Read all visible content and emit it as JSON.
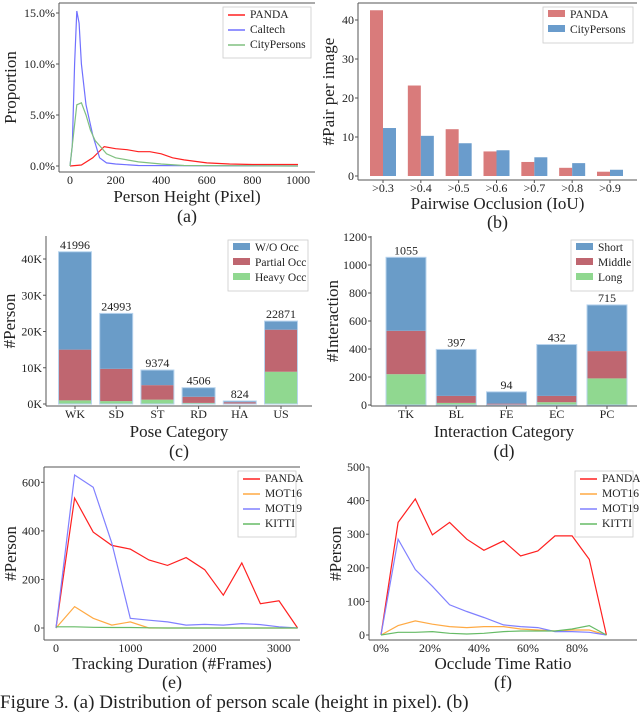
{
  "caption": "Figure 3. (a) Distribution of person scale (height in pixel). (b)",
  "chart_data": [
    {
      "id": "a",
      "panel_label": "(a)",
      "type": "line",
      "xlabel": "Person Height (Pixel)",
      "ylabel": "Proportion",
      "xlim": [
        0,
        1000
      ],
      "ylim": [
        0,
        15.5
      ],
      "xticks": [
        0,
        200,
        400,
        600,
        800,
        1000
      ],
      "yticks": [
        0,
        5,
        10,
        15
      ],
      "ytick_labels": [
        "0.0%",
        "5.0%",
        "10.0%",
        "15.0%"
      ],
      "legend": "top-right",
      "grid": false,
      "series": [
        {
          "name": "PANDA",
          "color": "#ff2020",
          "points": [
            [
              0,
              0
            ],
            [
              50,
              0.1
            ],
            [
              100,
              0.8
            ],
            [
              150,
              1.9
            ],
            [
              200,
              1.7
            ],
            [
              250,
              1.6
            ],
            [
              300,
              1.4
            ],
            [
              350,
              1.4
            ],
            [
              400,
              1.2
            ],
            [
              450,
              0.8
            ],
            [
              500,
              0.6
            ],
            [
              600,
              0.3
            ],
            [
              700,
              0.2
            ],
            [
              800,
              0.15
            ],
            [
              1000,
              0.15
            ]
          ]
        },
        {
          "name": "Caltech",
          "color": "#7070ff",
          "points": [
            [
              0,
              0
            ],
            [
              10,
              2
            ],
            [
              20,
              10
            ],
            [
              30,
              15.2
            ],
            [
              40,
              14
            ],
            [
              50,
              10
            ],
            [
              70,
              6
            ],
            [
              100,
              3
            ],
            [
              130,
              0.8
            ],
            [
              160,
              0.3
            ],
            [
              200,
              0.2
            ],
            [
              300,
              0.05
            ],
            [
              1000,
              0
            ]
          ]
        },
        {
          "name": "CityPersons",
          "color": "#80c080",
          "points": [
            [
              0,
              0
            ],
            [
              15,
              3
            ],
            [
              30,
              6
            ],
            [
              50,
              6.2
            ],
            [
              70,
              5
            ],
            [
              90,
              3.5
            ],
            [
              110,
              2.5
            ],
            [
              130,
              2
            ],
            [
              160,
              1.2
            ],
            [
              200,
              0.8
            ],
            [
              300,
              0.4
            ],
            [
              400,
              0.2
            ],
            [
              500,
              0.05
            ],
            [
              1000,
              0
            ]
          ]
        }
      ]
    },
    {
      "id": "b",
      "panel_label": "(b)",
      "type": "bar",
      "xlabel": "Pairwise Occlusion (IoU)",
      "ylabel": "#Pair per image",
      "categories": [
        ">0.3",
        ">0.4",
        ">0.5",
        ">0.6",
        ">0.7",
        ">0.8",
        ">0.9"
      ],
      "ylim": [
        0,
        44
      ],
      "yticks": [
        0,
        10,
        20,
        30,
        40
      ],
      "legend": "top-right",
      "grid": false,
      "series": [
        {
          "name": "PANDA",
          "color": "#d97b7b",
          "values": [
            42.5,
            23.2,
            12.0,
            6.3,
            3.6,
            2.1,
            1.1
          ]
        },
        {
          "name": "CityPersons",
          "color": "#6a9ccc",
          "values": [
            12.3,
            10.3,
            8.4,
            6.6,
            4.8,
            3.3,
            1.6
          ]
        }
      ]
    },
    {
      "id": "c",
      "panel_label": "(c)",
      "type": "stacked-bar",
      "xlabel": "Pose Category",
      "ylabel": "#Person",
      "categories": [
        "WK",
        "SD",
        "ST",
        "RD",
        "HA",
        "US"
      ],
      "totals": [
        41996,
        24993,
        9374,
        4506,
        824,
        22871
      ],
      "ylim": [
        0,
        45000
      ],
      "yticks": [
        0,
        10000,
        20000,
        30000,
        40000
      ],
      "ytick_labels": [
        "0K",
        "10K",
        "20K",
        "30K",
        "40K"
      ],
      "legend": "top-right",
      "grid": false,
      "series": [
        {
          "name": "Heavy Occ",
          "color": "#90d890",
          "values": [
            1000,
            800,
            1200,
            300,
            100,
            8900
          ]
        },
        {
          "name": "Partial Occ",
          "color": "#bf6670",
          "values": [
            14000,
            8900,
            4000,
            1700,
            400,
            11600
          ]
        },
        {
          "name": "W/O Occ",
          "color": "#6a9cc8",
          "values": [
            26996,
            15293,
            4174,
            2506,
            324,
            2371
          ]
        }
      ]
    },
    {
      "id": "d",
      "panel_label": "(d)",
      "type": "stacked-bar",
      "xlabel": "Interaction Category",
      "ylabel": "#Interaction",
      "categories": [
        "TK",
        "BL",
        "FE",
        "EC",
        "PC"
      ],
      "totals": [
        1055,
        397,
        94,
        432,
        715
      ],
      "ylim": [
        0,
        1200
      ],
      "yticks": [
        0,
        200,
        400,
        600,
        800,
        1000,
        1200
      ],
      "legend": "top-right",
      "grid": false,
      "series": [
        {
          "name": "Long",
          "color": "#90d890",
          "values": [
            220,
            15,
            2,
            20,
            190
          ]
        },
        {
          "name": "Middle",
          "color": "#bf6670",
          "values": [
            310,
            50,
            8,
            45,
            195
          ]
        },
        {
          "name": "Short",
          "color": "#6a9cc8",
          "values": [
            525,
            332,
            84,
            367,
            330
          ]
        }
      ]
    },
    {
      "id": "e",
      "panel_label": "(e)",
      "type": "line",
      "xlabel": "Tracking Duration (#Frames)",
      "ylabel": "#Person",
      "xlim": [
        0,
        3250
      ],
      "ylim": [
        0,
        650
      ],
      "xticks": [
        0,
        1000,
        2000,
        3000
      ],
      "yticks": [
        0,
        200,
        400,
        600
      ],
      "legend": "top-right",
      "grid": false,
      "series": [
        {
          "name": "PANDA",
          "color": "#ff2020",
          "points": [
            [
              0,
              0
            ],
            [
              250,
              535
            ],
            [
              500,
              395
            ],
            [
              750,
              340
            ],
            [
              1000,
              325
            ],
            [
              1250,
              280
            ],
            [
              1500,
              258
            ],
            [
              1750,
              290
            ],
            [
              2000,
              240
            ],
            [
              2250,
              135
            ],
            [
              2500,
              268
            ],
            [
              2750,
              100
            ],
            [
              3000,
              112
            ],
            [
              3250,
              0
            ]
          ]
        },
        {
          "name": "MOT16",
          "color": "#ffaa44",
          "points": [
            [
              0,
              0
            ],
            [
              250,
              88
            ],
            [
              500,
              40
            ],
            [
              750,
              12
            ],
            [
              1000,
              25
            ],
            [
              1250,
              0
            ],
            [
              1500,
              0
            ],
            [
              1750,
              0
            ],
            [
              2000,
              0
            ],
            [
              2250,
              0
            ],
            [
              2500,
              0
            ],
            [
              2750,
              0
            ],
            [
              3000,
              0
            ],
            [
              3250,
              0
            ]
          ]
        },
        {
          "name": "MOT19",
          "color": "#8080ff",
          "points": [
            [
              0,
              0
            ],
            [
              250,
              630
            ],
            [
              500,
              580
            ],
            [
              750,
              350
            ],
            [
              1000,
              40
            ],
            [
              1250,
              32
            ],
            [
              1500,
              25
            ],
            [
              1750,
              12
            ],
            [
              2000,
              15
            ],
            [
              2250,
              12
            ],
            [
              2500,
              18
            ],
            [
              2750,
              14
            ],
            [
              3000,
              5
            ],
            [
              3250,
              0
            ]
          ]
        },
        {
          "name": "KITTI",
          "color": "#66bb66",
          "points": [
            [
              0,
              5
            ],
            [
              250,
              5
            ],
            [
              500,
              3
            ],
            [
              750,
              2
            ],
            [
              1000,
              2
            ],
            [
              1250,
              1
            ],
            [
              1500,
              0
            ],
            [
              1750,
              0
            ],
            [
              2000,
              0
            ],
            [
              2250,
              0
            ],
            [
              2500,
              0
            ],
            [
              2750,
              0
            ],
            [
              3000,
              0
            ],
            [
              3250,
              0
            ]
          ]
        }
      ]
    },
    {
      "id": "f",
      "panel_label": "(f)",
      "type": "line",
      "xlabel": "Occlude Time Ratio",
      "ylabel": "#Person",
      "xlim": [
        0,
        92
      ],
      "ylim": [
        0,
        500
      ],
      "xticks": [
        0,
        20,
        40,
        60,
        80
      ],
      "xtick_labels": [
        "0%",
        "20%",
        "40%",
        "60%",
        "80%"
      ],
      "yticks": [
        0,
        100,
        200,
        300,
        400,
        500
      ],
      "legend": "top-right",
      "grid": false,
      "series": [
        {
          "name": "PANDA",
          "color": "#ff2020",
          "points": [
            [
              0,
              0
            ],
            [
              7,
              335
            ],
            [
              14,
              405
            ],
            [
              21,
              298
            ],
            [
              28,
              335
            ],
            [
              35,
              285
            ],
            [
              42,
              252
            ],
            [
              50,
              280
            ],
            [
              57,
              235
            ],
            [
              64,
              250
            ],
            [
              71,
              295
            ],
            [
              78,
              295
            ],
            [
              85,
              225
            ],
            [
              92,
              0
            ]
          ]
        },
        {
          "name": "MOT16",
          "color": "#ffaa44",
          "points": [
            [
              0,
              0
            ],
            [
              7,
              28
            ],
            [
              14,
              42
            ],
            [
              21,
              32
            ],
            [
              28,
              25
            ],
            [
              35,
              22
            ],
            [
              42,
              25
            ],
            [
              50,
              25
            ],
            [
              57,
              18
            ],
            [
              64,
              15
            ],
            [
              71,
              12
            ],
            [
              78,
              15
            ],
            [
              85,
              15
            ],
            [
              92,
              0
            ]
          ]
        },
        {
          "name": "MOT19",
          "color": "#8080ff",
          "points": [
            [
              0,
              0
            ],
            [
              7,
              285
            ],
            [
              14,
              195
            ],
            [
              21,
              145
            ],
            [
              28,
              90
            ],
            [
              35,
              70
            ],
            [
              42,
              52
            ],
            [
              50,
              30
            ],
            [
              57,
              25
            ],
            [
              64,
              22
            ],
            [
              71,
              10
            ],
            [
              78,
              10
            ],
            [
              85,
              8
            ],
            [
              92,
              0
            ]
          ]
        },
        {
          "name": "KITTI",
          "color": "#66bb66",
          "points": [
            [
              0,
              0
            ],
            [
              7,
              8
            ],
            [
              14,
              8
            ],
            [
              21,
              10
            ],
            [
              28,
              5
            ],
            [
              35,
              3
            ],
            [
              42,
              5
            ],
            [
              50,
              10
            ],
            [
              57,
              12
            ],
            [
              64,
              12
            ],
            [
              71,
              12
            ],
            [
              78,
              18
            ],
            [
              85,
              28
            ],
            [
              92,
              0
            ]
          ]
        }
      ]
    }
  ]
}
